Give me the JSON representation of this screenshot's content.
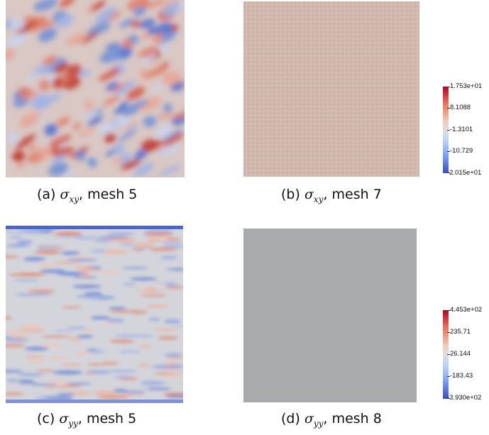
{
  "figures": [
    {
      "letter": "(a)",
      "symbol": "σ",
      "subscript": "xy",
      "suffix": ", mesh 5"
    },
    {
      "letter": "(b)",
      "symbol": "σ",
      "subscript": "xy",
      "suffix": ", mesh 7"
    },
    {
      "letter": "(c)",
      "symbol": "σ",
      "subscript": "yy",
      "suffix": ", mesh 5"
    },
    {
      "letter": "(d)",
      "symbol": "σ",
      "subscript": "yy",
      "suffix": ", mesh 8"
    }
  ],
  "colorbars": [
    {
      "labels": [
        "1.753e+01",
        "8.1088",
        "-1.3101",
        "-10.729",
        "-2.015e+01"
      ]
    },
    {
      "labels": [
        "4.453e+02",
        "235.71",
        "26.144",
        "-183.43",
        "-3.930e+02"
      ]
    }
  ],
  "colors": {
    "red": "#b2182b",
    "blue": "#2c4fb8",
    "neutral": "#d8d8d8",
    "mesh8_gray": "#a8aaab",
    "mesh7_tint": "#d4b6a8"
  }
}
